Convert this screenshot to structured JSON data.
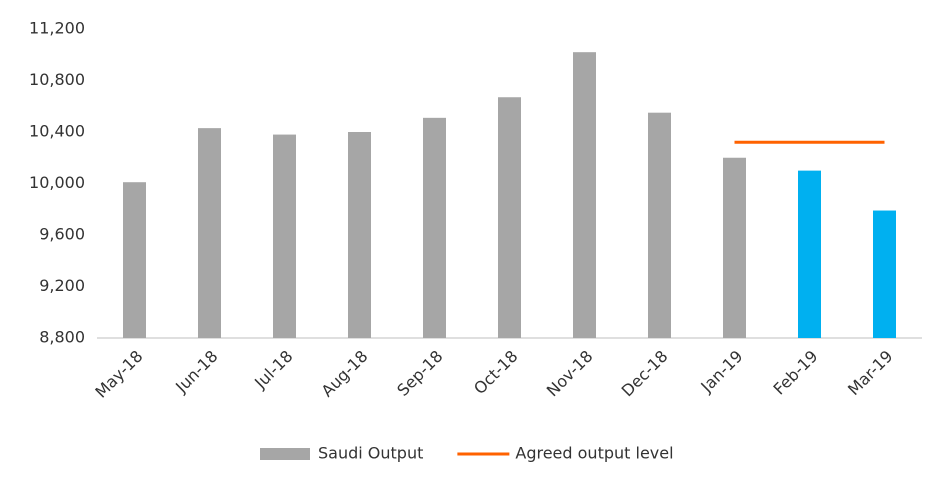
{
  "chart_data": {
    "type": "bar",
    "categories": [
      "May-18",
      "Jun-18",
      "Jul-18",
      "Aug-18",
      "Sep-18",
      "Oct-18",
      "Nov-18",
      "Dec-18",
      "Jan-19",
      "Feb-19",
      "Mar-19"
    ],
    "series": [
      {
        "name": "Saudi Output",
        "type": "bar",
        "color": "#a6a6a6",
        "colors": [
          "#a6a6a6",
          "#a6a6a6",
          "#a6a6a6",
          "#a6a6a6",
          "#a6a6a6",
          "#a6a6a6",
          "#a6a6a6",
          "#a6a6a6",
          "#a6a6a6",
          "#00b0f0",
          "#00b0f0"
        ],
        "values": [
          10010,
          10430,
          10380,
          10400,
          10510,
          10670,
          11020,
          10550,
          10200,
          10100,
          9790
        ]
      },
      {
        "name": "Agreed output level",
        "type": "line",
        "color": "#ff6200",
        "values": [
          null,
          null,
          null,
          null,
          null,
          null,
          null,
          null,
          10320,
          10320,
          10320
        ]
      }
    ],
    "ylim": [
      8800,
      11200
    ],
    "yticks": [
      {
        "value": 8800,
        "label": "8,800"
      },
      {
        "value": 9200,
        "label": "9,200"
      },
      {
        "value": 9600,
        "label": "9,600"
      },
      {
        "value": 10000,
        "label": "10,000"
      },
      {
        "value": 10400,
        "label": "10,400"
      },
      {
        "value": 10800,
        "label": "10,800"
      },
      {
        "value": 11200,
        "label": "11,200"
      }
    ],
    "legend": "bottom"
  }
}
